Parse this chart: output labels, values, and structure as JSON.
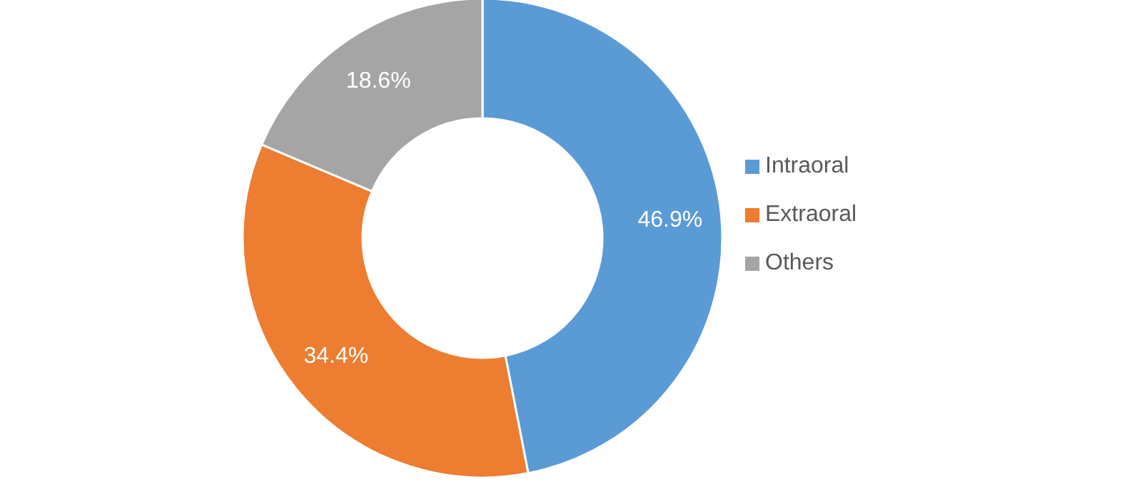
{
  "chart_data": {
    "type": "donut",
    "categories": [
      "Intraoral",
      "Extraoral",
      "Others"
    ],
    "values": [
      46.9,
      34.4,
      18.6
    ],
    "colors": [
      "#5b9bd5",
      "#ed7d31",
      "#a5a5a5"
    ],
    "value_labels": [
      "46.9%",
      "34.4%",
      "18.6%"
    ],
    "legend": "right"
  }
}
